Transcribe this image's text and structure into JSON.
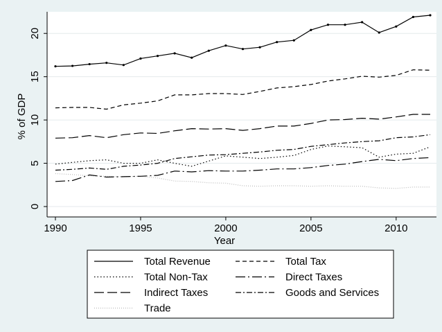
{
  "chart_data": {
    "type": "line",
    "title": "",
    "xlabel": "Year",
    "ylabel": "% of GDP",
    "xlim": [
      1990,
      2012
    ],
    "ylim": [
      0,
      22.5
    ],
    "xticks": [
      1990,
      1995,
      2000,
      2005,
      2010
    ],
    "yticks": [
      0,
      5,
      10,
      15,
      20
    ],
    "grid": "horizontal",
    "legend_position": "bottom",
    "x": [
      1990,
      1991,
      1992,
      1993,
      1994,
      1995,
      1996,
      1997,
      1998,
      1999,
      2000,
      2001,
      2002,
      2003,
      2004,
      2005,
      2006,
      2007,
      2008,
      2009,
      2010,
      2011,
      2012
    ],
    "series": [
      {
        "name": "Total Revenue",
        "dash": "solid",
        "markers": true,
        "values": [
          16.2,
          16.25,
          16.45,
          16.6,
          16.35,
          17.1,
          17.4,
          17.7,
          17.2,
          18.0,
          18.6,
          18.2,
          18.4,
          19.0,
          19.2,
          20.4,
          21.0,
          21.0,
          21.3,
          20.1,
          20.8,
          21.9,
          22.1
        ]
      },
      {
        "name": "Total Tax",
        "dash": "short-dash",
        "values": [
          11.4,
          11.45,
          11.45,
          11.25,
          11.75,
          11.95,
          12.2,
          12.9,
          12.9,
          13.05,
          13.05,
          12.95,
          13.3,
          13.7,
          13.85,
          14.1,
          14.5,
          14.75,
          15.05,
          14.95,
          15.15,
          15.8,
          15.75
        ]
      },
      {
        "name": "Total Non-Tax",
        "dash": "dotted",
        "values": [
          4.9,
          5.1,
          5.3,
          5.4,
          5.0,
          5.0,
          5.4,
          5.0,
          4.65,
          5.25,
          5.85,
          5.7,
          5.55,
          5.7,
          5.9,
          6.6,
          7.0,
          6.9,
          6.8,
          5.7,
          6.05,
          6.15,
          6.9
        ]
      },
      {
        "name": "Direct Taxes",
        "dash": "long-dash-dot",
        "values": [
          2.9,
          3.0,
          3.65,
          3.4,
          3.45,
          3.5,
          3.6,
          4.1,
          4.0,
          4.15,
          4.1,
          4.1,
          4.2,
          4.35,
          4.35,
          4.5,
          4.75,
          4.9,
          5.2,
          5.45,
          5.3,
          5.55,
          5.65
        ]
      },
      {
        "name": "Indirect Taxes",
        "dash": "long-dash",
        "values": [
          7.9,
          7.95,
          8.2,
          7.95,
          8.3,
          8.5,
          8.45,
          8.75,
          9.0,
          8.95,
          9.0,
          8.8,
          9.0,
          9.3,
          9.3,
          9.6,
          10.0,
          10.05,
          10.2,
          10.1,
          10.35,
          10.65,
          10.65
        ]
      },
      {
        "name": "Goods and Services",
        "dash": "dash-dot",
        "values": [
          4.2,
          4.3,
          4.45,
          4.3,
          4.65,
          4.8,
          5.0,
          5.55,
          5.75,
          5.95,
          6.0,
          6.15,
          6.3,
          6.5,
          6.6,
          6.95,
          7.15,
          7.35,
          7.5,
          7.6,
          7.95,
          8.05,
          8.3
        ]
      },
      {
        "name": "Trade",
        "dash": "fine-dotted",
        "color": "#bbbbbb",
        "values": [
          3.8,
          3.7,
          3.55,
          3.5,
          3.45,
          3.5,
          3.3,
          2.95,
          2.9,
          2.75,
          2.7,
          2.4,
          2.35,
          2.4,
          2.4,
          2.35,
          2.4,
          2.35,
          2.35,
          2.15,
          2.1,
          2.25,
          2.25
        ]
      }
    ],
    "colors": {
      "background": "#eaf2f3",
      "plot_area": "#ffffff",
      "line": "#000000",
      "grid": "#e4eaec"
    }
  }
}
